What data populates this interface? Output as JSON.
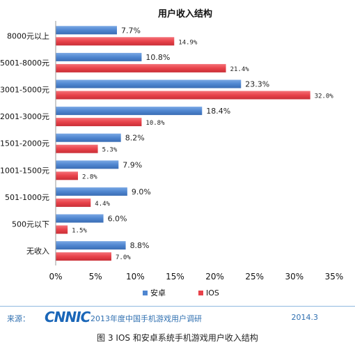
{
  "footer": {
    "source_label": "来源：",
    "logo_text": "CNNIC",
    "survey_name": "2013年度中国手机游戏用户调研",
    "date": "2014.3"
  },
  "caption": "图 3  IOS 和安卓系统手机游戏用户收入结构",
  "chart_data": {
    "type": "bar",
    "orientation": "horizontal",
    "title": "用户收入结构",
    "categories": [
      "8000元以上",
      "5001-8000元",
      "3001-5000元",
      "2001-3000元",
      "1501-2000元",
      "1001-1500元",
      "501-1000元",
      "500元以下",
      "无收入"
    ],
    "series": [
      {
        "name": "安卓",
        "color": "#4f86d0",
        "values": [
          7.7,
          10.8,
          23.3,
          18.4,
          8.2,
          7.9,
          9.0,
          6.0,
          8.8
        ],
        "labels": [
          "7.7%",
          "10.8%",
          "23.3%",
          "18.4%",
          "8.2%",
          "7.9%",
          "9.0%",
          "6.0%",
          "8.8%"
        ]
      },
      {
        "name": "IOS",
        "color": "#e8424a",
        "values": [
          14.9,
          21.4,
          32.0,
          10.8,
          5.3,
          2.8,
          4.4,
          1.5,
          7.0
        ],
        "labels": [
          "14.9%",
          "21.4%",
          "32.0%",
          "10.8%",
          "5.3%",
          "2.8%",
          "4.4%",
          "1.5%",
          "7.0%"
        ]
      }
    ],
    "xlim": [
      0,
      35
    ],
    "xticks": [
      "0%",
      "5%",
      "10%",
      "15%",
      "20%",
      "25%",
      "30%",
      "35%"
    ],
    "grid": false,
    "legend_position": "bottom"
  }
}
